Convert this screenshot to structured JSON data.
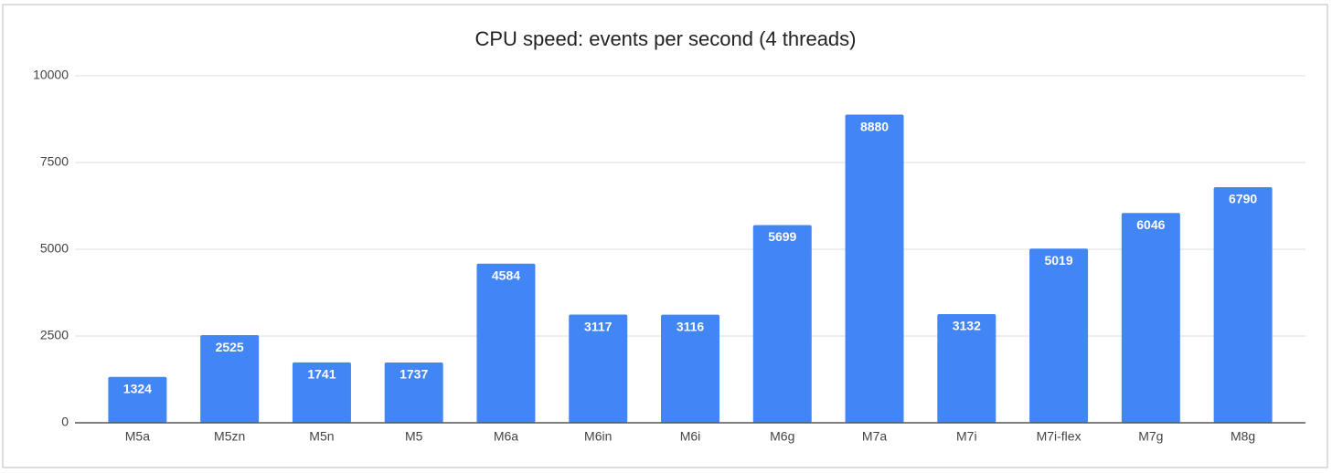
{
  "chart_data": {
    "type": "bar",
    "title": "CPU speed: events per second (4 threads)",
    "categories": [
      "M5a",
      "M5zn",
      "M5n",
      "M5",
      "M6a",
      "M6in",
      "M6i",
      "M6g",
      "M7a",
      "M7i",
      "M7i-flex",
      "M7g",
      "M8g"
    ],
    "values": [
      1324,
      2525,
      1741,
      1737,
      4584,
      3117,
      3116,
      5699,
      8880,
      3132,
      5019,
      6046,
      6790
    ],
    "color": "#4285f4",
    "ylim": [
      0,
      10000
    ],
    "yticks": [
      0,
      2500,
      5000,
      7500,
      10000
    ],
    "grid": true
  }
}
